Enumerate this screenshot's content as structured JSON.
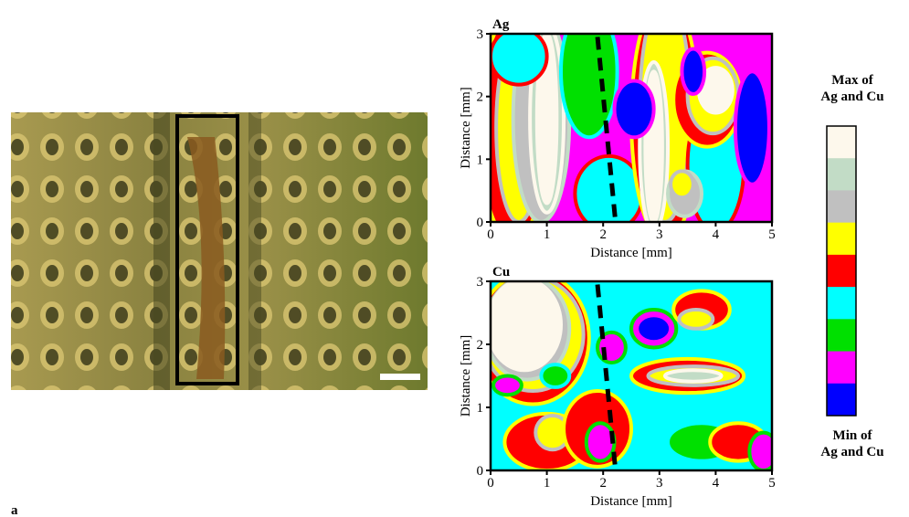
{
  "chart_data": [
    {
      "type": "contour",
      "title": "Ag",
      "x_label": "Distance [mm]",
      "y_label": "Distance [mm]",
      "xlim": [
        0,
        5
      ],
      "ylim": [
        0,
        3
      ],
      "xticks": [
        0,
        1,
        2,
        3,
        4,
        5
      ],
      "yticks": [
        0,
        1,
        2,
        3
      ]
    },
    {
      "type": "contour",
      "title": "Cu",
      "x_label": "Distance [mm]",
      "y_label": "Distance [mm]",
      "xlim": [
        0,
        5
      ],
      "ylim": [
        0,
        3
      ],
      "xticks": [
        0,
        1,
        2,
        3,
        4,
        5
      ],
      "yticks": [
        0,
        1,
        2,
        3
      ]
    }
  ],
  "colorbar": {
    "colors": [
      "#fdf8ec",
      "#c2dcc6",
      "#c0c0c0",
      "#ffff00",
      "#ff0000",
      "#00ffff",
      "#00e000",
      "#ff00ff",
      "#0000ff"
    ],
    "max_label": [
      "Max of",
      "Ag and Cu"
    ],
    "min_label": [
      "Min of",
      "Ag and Cu"
    ]
  },
  "panel_label": "a"
}
